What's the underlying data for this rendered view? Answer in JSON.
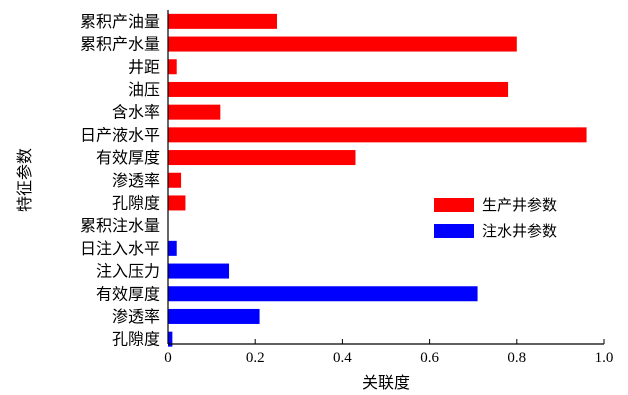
{
  "chart_data": {
    "type": "bar",
    "orientation": "horizontal",
    "xlabel": "关联度",
    "ylabel": "特征参数",
    "xlim": [
      0,
      1.0
    ],
    "xticks": [
      0,
      0.2,
      0.4,
      0.6,
      0.8,
      1.0
    ],
    "xtick_labels": [
      "0",
      "0.2",
      "0.4",
      "0.6",
      "0.8",
      "1.0"
    ],
    "grid": false,
    "legend_position": "right",
    "categories": [
      "累积产油量",
      "累积产水量",
      "井距",
      "油压",
      "含水率",
      "日产液水平",
      "有效厚度",
      "渗透率",
      "孔隙度",
      "累积注水量",
      "日注入水平",
      "注入压力",
      "有效厚度",
      "渗透率",
      "孔隙度"
    ],
    "series": [
      {
        "name": "生产井参数",
        "color": "#ff0000",
        "values": [
          0.25,
          0.8,
          0.02,
          0.78,
          0.12,
          0.96,
          0.43,
          0.03,
          0.04,
          null,
          null,
          null,
          null,
          null,
          null
        ]
      },
      {
        "name": "注水井参数",
        "color": "#0000ff",
        "values": [
          null,
          null,
          null,
          null,
          null,
          null,
          null,
          null,
          null,
          0.0,
          0.02,
          0.14,
          0.71,
          0.21,
          0.01
        ]
      }
    ]
  }
}
